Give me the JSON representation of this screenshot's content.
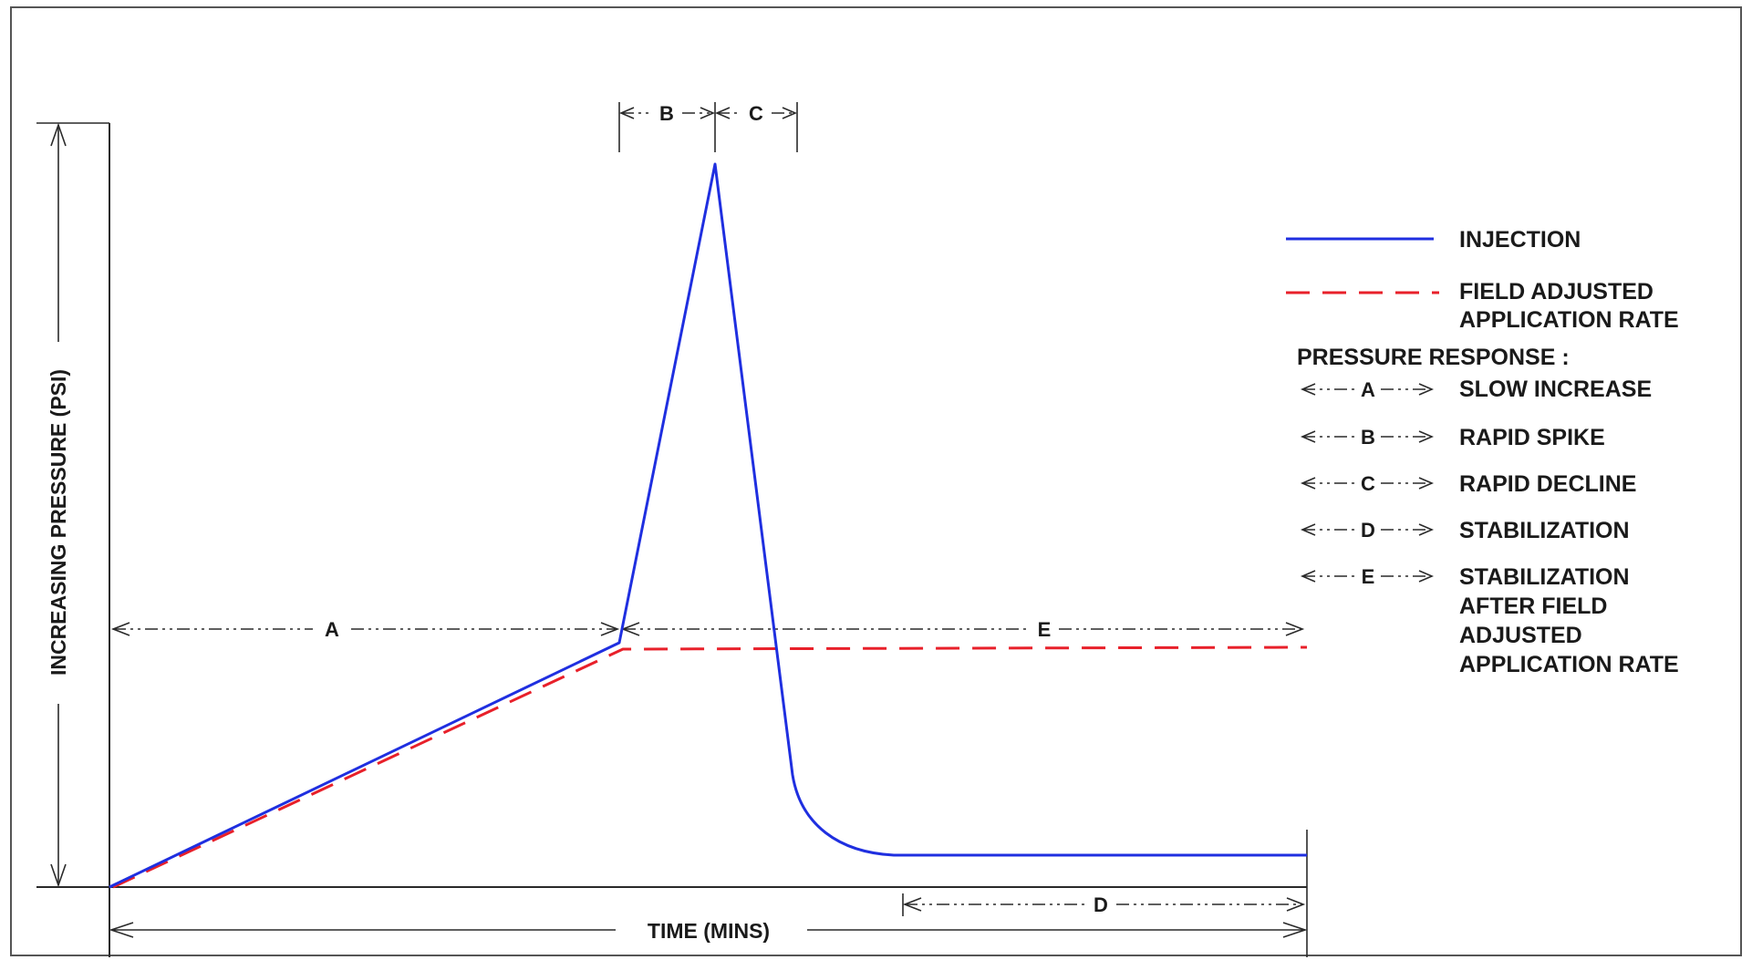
{
  "diagram": {
    "y_axis_label": "INCREASING PRESSURE (PSI)",
    "x_axis_label": "TIME (MINS)",
    "segment_labels": {
      "a": "A",
      "b": "B",
      "c": "C",
      "d": "D",
      "e": "E"
    },
    "colors": {
      "injection": "#1f2fe0",
      "field_adjusted": "#e8202a",
      "ink": "#2a2a2a"
    }
  },
  "legend": {
    "injection": "INJECTION",
    "field_adjusted_1": "FIELD ADJUSTED",
    "field_adjusted_2": "APPLICATION RATE",
    "pressure_response": "PRESSURE RESPONSE :",
    "items": [
      {
        "key": "A",
        "label": "SLOW INCREASE"
      },
      {
        "key": "B",
        "label": "RAPID SPIKE"
      },
      {
        "key": "C",
        "label": "RAPID DECLINE"
      },
      {
        "key": "D",
        "label": "STABILIZATION"
      },
      {
        "key": "E",
        "label_lines": [
          "STABILIZATION",
          "AFTER FIELD",
          "ADJUSTED",
          "APPLICATION RATE"
        ]
      }
    ]
  }
}
